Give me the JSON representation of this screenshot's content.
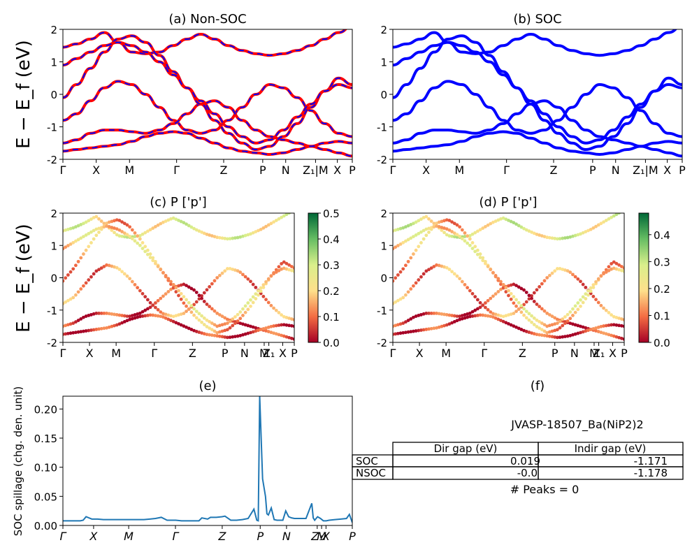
{
  "chart_data": [
    {
      "id": "a",
      "type": "line",
      "title": "(a) Non-SOC",
      "ylabel": "E − E_f (eV)",
      "ylim": [
        -2,
        2
      ],
      "yticks": [
        -2,
        -1,
        0,
        1,
        2
      ],
      "xlim": [
        0,
        100
      ],
      "kpath_labels": [
        "Γ",
        "X",
        "M",
        "Γ",
        "Z",
        "P",
        "N",
        "Z₁|M",
        "X",
        "P"
      ],
      "kpath_positions": [
        0,
        14.5,
        29,
        49.5,
        70,
        87,
        97,
        110,
        119.5,
        126
      ],
      "series_style": [
        {
          "color": "#ff0000",
          "dash": "solid"
        },
        {
          "color": "#0000ff",
          "dash": "dashed"
        }
      ],
      "bands": [
        [
          1.45,
          1.55,
          1.7,
          1.9,
          1.6,
          1.3,
          1.25,
          1.3,
          1.5,
          1.7,
          1.85,
          1.7,
          1.5,
          1.35,
          1.25,
          1.2,
          1.25,
          1.35,
          1.5,
          1.7,
          1.9,
          2.1
        ],
        [
          -0.8,
          -0.6,
          -0.2,
          0.2,
          0.4,
          0.3,
          0.0,
          -0.4,
          -0.8,
          -1.1,
          -1.2,
          -1.1,
          -0.8,
          -0.4,
          0.0,
          0.3,
          0.2,
          -0.1,
          -0.5,
          -0.9,
          -1.2,
          -1.3
        ],
        [
          -1.5,
          -1.4,
          -1.2,
          -1.1,
          -1.1,
          -1.15,
          -1.2,
          -1.1,
          -0.9,
          -0.6,
          -0.3,
          -0.2,
          -0.4,
          -0.8,
          -1.1,
          -1.3,
          -1.4,
          -1.5,
          -1.6,
          -1.7,
          -1.8,
          -1.9
        ],
        [
          -1.75,
          -1.7,
          -1.65,
          -1.6,
          -1.55,
          -1.45,
          -1.3,
          -1.2,
          -1.15,
          -1.2,
          -1.35,
          -1.5,
          -1.65,
          -1.75,
          -1.8,
          -1.85,
          -1.8,
          -1.7,
          -1.6,
          -1.5,
          -1.45,
          -1.5
        ],
        [
          -0.1,
          0.3,
          0.8,
          1.3,
          1.7,
          1.8,
          1.6,
          1.2,
          0.7,
          0.2,
          -0.3,
          -0.8,
          -1.2,
          -1.5,
          -1.7,
          -1.6,
          -1.3,
          -0.9,
          -0.4,
          0.1,
          0.5,
          0.3
        ],
        [
          0.9,
          1.1,
          1.3,
          1.5,
          1.6,
          1.5,
          1.3,
          1.0,
          0.6,
          0.2,
          -0.2,
          -0.6,
          -1.0,
          -1.3,
          -1.5,
          -1.4,
          -1.1,
          -0.7,
          -0.3,
          0.1,
          0.3,
          0.2
        ]
      ]
    },
    {
      "id": "b",
      "type": "line",
      "title": "(b) SOC",
      "ylim": [
        -2,
        2
      ],
      "yticks": [
        -2,
        -1,
        0,
        1,
        2
      ],
      "xlim": [
        0,
        100
      ],
      "kpath_labels": [
        "Γ",
        "X",
        "M",
        "Γ",
        "Z",
        "P",
        "N",
        "Z₁|M",
        "X",
        "P"
      ],
      "kpath_positions": [
        0,
        14.5,
        29,
        49.5,
        70,
        87,
        97,
        110,
        119.5,
        126
      ],
      "series_style": [
        {
          "color": "#0000ff",
          "dash": "solid"
        }
      ],
      "bands": [
        [
          1.45,
          1.55,
          1.7,
          1.9,
          1.6,
          1.3,
          1.25,
          1.3,
          1.5,
          1.7,
          1.85,
          1.7,
          1.5,
          1.35,
          1.25,
          1.2,
          1.25,
          1.35,
          1.5,
          1.7,
          1.9,
          2.1
        ],
        [
          -0.8,
          -0.6,
          -0.2,
          0.2,
          0.4,
          0.3,
          0.0,
          -0.4,
          -0.8,
          -1.1,
          -1.2,
          -1.1,
          -0.8,
          -0.4,
          0.0,
          0.3,
          0.2,
          -0.1,
          -0.5,
          -0.9,
          -1.2,
          -1.3
        ],
        [
          -1.5,
          -1.4,
          -1.2,
          -1.1,
          -1.1,
          -1.15,
          -1.2,
          -1.1,
          -0.9,
          -0.6,
          -0.3,
          -0.2,
          -0.4,
          -0.8,
          -1.1,
          -1.3,
          -1.4,
          -1.5,
          -1.6,
          -1.7,
          -1.8,
          -1.9
        ],
        [
          -1.75,
          -1.7,
          -1.65,
          -1.6,
          -1.55,
          -1.45,
          -1.3,
          -1.2,
          -1.15,
          -1.2,
          -1.35,
          -1.5,
          -1.65,
          -1.75,
          -1.8,
          -1.85,
          -1.8,
          -1.7,
          -1.6,
          -1.5,
          -1.45,
          -1.5
        ],
        [
          -0.1,
          0.3,
          0.8,
          1.3,
          1.7,
          1.8,
          1.6,
          1.2,
          0.7,
          0.2,
          -0.3,
          -0.8,
          -1.2,
          -1.5,
          -1.7,
          -1.6,
          -1.3,
          -0.9,
          -0.4,
          0.1,
          0.5,
          0.3
        ],
        [
          0.9,
          1.1,
          1.3,
          1.5,
          1.6,
          1.5,
          1.3,
          1.0,
          0.6,
          0.2,
          -0.2,
          -0.6,
          -1.0,
          -1.3,
          -1.5,
          -1.4,
          -1.1,
          -0.7,
          -0.3,
          0.1,
          0.3,
          0.2
        ]
      ]
    },
    {
      "id": "c",
      "type": "scatter",
      "title": "(c)  P ['p']",
      "ylabel": "E − E_f (eV)",
      "ylim": [
        -2,
        2
      ],
      "yticks": [
        -2,
        -1,
        0,
        1,
        2
      ],
      "xlim": [
        0,
        100
      ],
      "kpath_labels": [
        "Γ",
        "X",
        "M",
        "Γ",
        "Z",
        "P",
        "N",
        "M",
        "Z₁",
        "X",
        "P"
      ],
      "kpath_positions": [
        0,
        11.5,
        23,
        39.5,
        56,
        70,
        78.5,
        87,
        89,
        95,
        100
      ],
      "colorbar": {
        "min": 0.0,
        "max": 0.5,
        "ticks": [
          "0.0",
          "0.1",
          "0.2",
          "0.3",
          "0.4",
          "0.5"
        ],
        "colormap": "RdYlGn"
      }
    },
    {
      "id": "d",
      "type": "scatter",
      "title": "(d) P ['p']",
      "ylim": [
        -2,
        2
      ],
      "yticks": [
        -2,
        -1,
        0,
        1,
        2
      ],
      "xlim": [
        0,
        100
      ],
      "kpath_labels": [
        "Γ",
        "X",
        "M",
        "Γ",
        "Z",
        "P",
        "N",
        "M",
        "Z₁",
        "X",
        "P"
      ],
      "kpath_positions": [
        0,
        11.5,
        23,
        39.5,
        56,
        70,
        78.5,
        87,
        89,
        95,
        100
      ],
      "colorbar": {
        "min": 0.0,
        "max": 0.48,
        "ticks": [
          "0.0",
          "0.1",
          "0.2",
          "0.3",
          "0.4"
        ],
        "colormap": "RdYlGn"
      }
    },
    {
      "id": "e",
      "type": "line",
      "title": "(e)",
      "ylabel": "SOC spillage (chg. den. unit)",
      "ylim": [
        0,
        0.222
      ],
      "yticks": [
        "0.00",
        "0.05",
        "0.10",
        "0.15",
        "0.20"
      ],
      "ytick_values": [
        0,
        0.05,
        0.1,
        0.15,
        0.2
      ],
      "xlim": [
        0,
        100
      ],
      "kpath_labels": [
        "Γ",
        "X",
        "M",
        "Γ",
        "Z",
        "P",
        "N",
        "Z₁",
        "M",
        "X",
        "P"
      ],
      "kpath_positions": [
        0,
        10.5,
        22.5,
        38.5,
        54.5,
        67.5,
        76.5,
        87,
        88.5,
        90,
        99
      ],
      "color": "#1f77b4",
      "x": [
        0,
        2,
        4,
        6,
        7,
        8,
        10,
        12,
        14,
        16,
        18,
        20,
        22,
        24,
        26,
        28,
        30,
        32,
        34,
        36,
        38,
        39,
        41,
        43,
        45,
        47,
        48,
        50,
        51,
        53,
        55,
        56,
        58,
        60,
        62,
        64,
        66,
        67,
        67.5,
        68,
        69,
        70,
        70.5,
        71,
        72,
        73,
        74,
        75,
        76,
        77,
        78,
        79,
        80,
        82,
        84,
        86,
        86.5,
        87,
        88,
        89,
        90,
        91,
        92,
        94,
        96,
        98,
        99,
        100
      ],
      "y": [
        0.008,
        0.008,
        0.008,
        0.008,
        0.009,
        0.015,
        0.011,
        0.011,
        0.01,
        0.01,
        0.01,
        0.01,
        0.01,
        0.01,
        0.01,
        0.01,
        0.011,
        0.012,
        0.014,
        0.009,
        0.009,
        0.009,
        0.008,
        0.008,
        0.008,
        0.008,
        0.013,
        0.011,
        0.014,
        0.014,
        0.015,
        0.016,
        0.009,
        0.009,
        0.01,
        0.012,
        0.028,
        0.009,
        0.008,
        0.222,
        0.08,
        0.05,
        0.02,
        0.018,
        0.03,
        0.01,
        0.009,
        0.009,
        0.009,
        0.025,
        0.015,
        0.013,
        0.012,
        0.012,
        0.012,
        0.038,
        0.013,
        0.009,
        0.015,
        0.012,
        0.008,
        0.008,
        0.009,
        0.01,
        0.011,
        0.012,
        0.019,
        0.005
      ]
    }
  ],
  "panel_f": {
    "title": "(f)",
    "material": "JVASP-18507_Ba(NiP2)2",
    "table": {
      "headers": [
        "Dir gap (eV)",
        "Indir gap (eV)"
      ],
      "rows": [
        {
          "label": "SOC",
          "dir": "0.019",
          "indir": "-1.171"
        },
        {
          "label": "NSOC",
          "dir": "-0.0",
          "indir": "-1.178"
        }
      ]
    },
    "peaks": "# Peaks = 0"
  }
}
